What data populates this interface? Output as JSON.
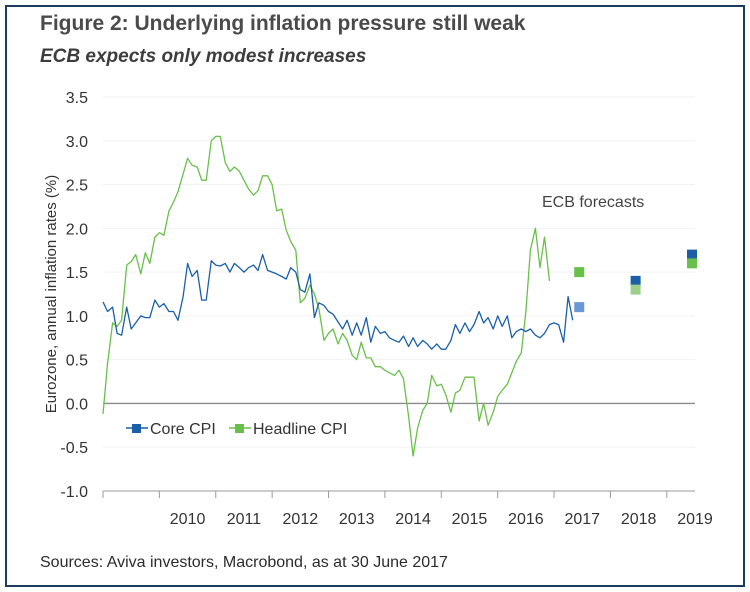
{
  "title": "Figure 2: Underlying inflation pressure still weak",
  "subtitle": "ECB expects only modest increases",
  "source": "Sources: Aviva investors, Macrobond, as at 30 June 2017",
  "colors": {
    "core": "#1a5fa8",
    "headline": "#6abf4b",
    "core_forecast_2017": "#6a98d4",
    "headline_forecast_2018": "#9ed08b",
    "zero_line": "#8a8a8a",
    "axis": "#9a9a9a"
  },
  "chart_data": {
    "type": "line",
    "ylabel": "Eurozone, annual inflation rates (%)",
    "ylim": [
      -1.0,
      3.5
    ],
    "yticks": [
      -1.0,
      -0.5,
      0.0,
      0.5,
      1.0,
      1.5,
      2.0,
      2.5,
      3.0,
      3.5
    ],
    "ytick_labels": [
      "-1.0",
      "-0.5",
      "0.0",
      "0.5",
      "1.0",
      "1.5",
      "2.0",
      "2.5",
      "3.0",
      "3.5"
    ],
    "xlim": [
      2009.0,
      2019.5
    ],
    "xtick_labels": [
      "2010",
      "2011",
      "2012",
      "2013",
      "2014",
      "2015",
      "2016",
      "2017",
      "2018",
      "2019"
    ],
    "annotation": "ECB forecasts",
    "legend": {
      "placement": "bottom-left",
      "entries": [
        "Core CPI",
        "Headline CPI"
      ]
    },
    "series": [
      {
        "name": "Core CPI",
        "points": [
          [
            2009.0,
            1.16
          ],
          [
            2009.08,
            1.05
          ],
          [
            2009.17,
            1.1
          ],
          [
            2009.25,
            0.8
          ],
          [
            2009.33,
            0.78
          ],
          [
            2009.42,
            1.1
          ],
          [
            2009.5,
            0.85
          ],
          [
            2009.58,
            0.92
          ],
          [
            2009.67,
            1.0
          ],
          [
            2009.75,
            0.98
          ],
          [
            2009.83,
            0.98
          ],
          [
            2009.92,
            1.18
          ],
          [
            2010.0,
            1.1
          ],
          [
            2010.08,
            1.14
          ],
          [
            2010.17,
            1.05
          ],
          [
            2010.25,
            1.05
          ],
          [
            2010.33,
            0.95
          ],
          [
            2010.42,
            1.22
          ],
          [
            2010.5,
            1.6
          ],
          [
            2010.58,
            1.45
          ],
          [
            2010.67,
            1.52
          ],
          [
            2010.75,
            1.18
          ],
          [
            2010.83,
            1.18
          ],
          [
            2010.92,
            1.63
          ],
          [
            2011.0,
            1.58
          ],
          [
            2011.08,
            1.57
          ],
          [
            2011.17,
            1.6
          ],
          [
            2011.25,
            1.5
          ],
          [
            2011.33,
            1.6
          ],
          [
            2011.42,
            1.55
          ],
          [
            2011.5,
            1.5
          ],
          [
            2011.58,
            1.55
          ],
          [
            2011.67,
            1.58
          ],
          [
            2011.75,
            1.52
          ],
          [
            2011.83,
            1.7
          ],
          [
            2011.92,
            1.52
          ],
          [
            2012.0,
            1.5
          ],
          [
            2012.08,
            1.48
          ],
          [
            2012.17,
            1.45
          ],
          [
            2012.25,
            1.42
          ],
          [
            2012.33,
            1.55
          ],
          [
            2012.42,
            1.5
          ],
          [
            2012.5,
            1.3
          ],
          [
            2012.58,
            1.27
          ],
          [
            2012.67,
            1.48
          ],
          [
            2012.75,
            0.98
          ],
          [
            2012.83,
            1.15
          ],
          [
            2012.92,
            1.12
          ],
          [
            2013.0,
            1.05
          ],
          [
            2013.08,
            1.02
          ],
          [
            2013.17,
            0.93
          ],
          [
            2013.25,
            0.85
          ],
          [
            2013.33,
            0.95
          ],
          [
            2013.42,
            0.78
          ],
          [
            2013.5,
            0.92
          ],
          [
            2013.58,
            0.78
          ],
          [
            2013.67,
            0.98
          ],
          [
            2013.75,
            0.7
          ],
          [
            2013.83,
            0.88
          ],
          [
            2013.92,
            0.8
          ],
          [
            2014.0,
            0.82
          ],
          [
            2014.08,
            0.75
          ],
          [
            2014.17,
            0.72
          ],
          [
            2014.25,
            0.7
          ],
          [
            2014.33,
            0.77
          ],
          [
            2014.42,
            0.65
          ],
          [
            2014.5,
            0.75
          ],
          [
            2014.58,
            0.65
          ],
          [
            2014.67,
            0.72
          ],
          [
            2014.75,
            0.68
          ],
          [
            2014.83,
            0.62
          ],
          [
            2014.92,
            0.68
          ],
          [
            2015.0,
            0.62
          ],
          [
            2015.08,
            0.62
          ],
          [
            2015.17,
            0.72
          ],
          [
            2015.25,
            0.9
          ],
          [
            2015.33,
            0.8
          ],
          [
            2015.42,
            0.92
          ],
          [
            2015.5,
            0.82
          ],
          [
            2015.58,
            0.9
          ],
          [
            2015.67,
            1.05
          ],
          [
            2015.75,
            0.92
          ],
          [
            2015.83,
            0.98
          ],
          [
            2015.92,
            0.85
          ],
          [
            2016.0,
            1.0
          ],
          [
            2016.08,
            0.88
          ],
          [
            2016.17,
            1.0
          ],
          [
            2016.25,
            0.75
          ],
          [
            2016.33,
            0.82
          ],
          [
            2016.42,
            0.85
          ],
          [
            2016.5,
            0.82
          ],
          [
            2016.58,
            0.85
          ],
          [
            2016.67,
            0.78
          ],
          [
            2016.75,
            0.75
          ],
          [
            2016.83,
            0.8
          ],
          [
            2016.92,
            0.9
          ],
          [
            2017.0,
            0.92
          ],
          [
            2017.08,
            0.9
          ],
          [
            2017.17,
            0.7
          ],
          [
            2017.25,
            1.22
          ],
          [
            2017.33,
            0.95
          ]
        ]
      },
      {
        "name": "Headline CPI",
        "points": [
          [
            2009.0,
            -0.12
          ],
          [
            2009.08,
            0.45
          ],
          [
            2009.17,
            0.92
          ],
          [
            2009.25,
            0.88
          ],
          [
            2009.33,
            0.95
          ],
          [
            2009.42,
            1.58
          ],
          [
            2009.5,
            1.62
          ],
          [
            2009.58,
            1.7
          ],
          [
            2009.67,
            1.48
          ],
          [
            2009.75,
            1.72
          ],
          [
            2009.83,
            1.6
          ],
          [
            2009.92,
            1.9
          ],
          [
            2010.0,
            1.95
          ],
          [
            2010.08,
            1.92
          ],
          [
            2010.17,
            2.2
          ],
          [
            2010.25,
            2.3
          ],
          [
            2010.33,
            2.42
          ],
          [
            2010.42,
            2.62
          ],
          [
            2010.5,
            2.8
          ],
          [
            2010.58,
            2.72
          ],
          [
            2010.67,
            2.7
          ],
          [
            2010.75,
            2.55
          ],
          [
            2010.83,
            2.55
          ],
          [
            2010.92,
            3.0
          ],
          [
            2011.0,
            3.05
          ],
          [
            2011.08,
            3.05
          ],
          [
            2011.17,
            2.75
          ],
          [
            2011.25,
            2.65
          ],
          [
            2011.33,
            2.7
          ],
          [
            2011.42,
            2.65
          ],
          [
            2011.5,
            2.55
          ],
          [
            2011.58,
            2.45
          ],
          [
            2011.67,
            2.38
          ],
          [
            2011.75,
            2.43
          ],
          [
            2011.83,
            2.6
          ],
          [
            2011.92,
            2.6
          ],
          [
            2012.0,
            2.5
          ],
          [
            2012.08,
            2.2
          ],
          [
            2012.17,
            2.22
          ],
          [
            2012.25,
            1.98
          ],
          [
            2012.33,
            1.85
          ],
          [
            2012.42,
            1.75
          ],
          [
            2012.5,
            1.15
          ],
          [
            2012.58,
            1.2
          ],
          [
            2012.67,
            1.35
          ],
          [
            2012.75,
            1.25
          ],
          [
            2012.83,
            1.08
          ],
          [
            2012.92,
            0.72
          ],
          [
            2013.0,
            0.8
          ],
          [
            2013.08,
            0.85
          ],
          [
            2013.17,
            0.68
          ],
          [
            2013.25,
            0.8
          ],
          [
            2013.33,
            0.72
          ],
          [
            2013.42,
            0.55
          ],
          [
            2013.5,
            0.5
          ],
          [
            2013.58,
            0.7
          ],
          [
            2013.67,
            0.52
          ],
          [
            2013.75,
            0.52
          ],
          [
            2013.83,
            0.42
          ],
          [
            2013.92,
            0.42
          ],
          [
            2014.0,
            0.38
          ],
          [
            2014.08,
            0.35
          ],
          [
            2014.17,
            0.32
          ],
          [
            2014.25,
            0.38
          ],
          [
            2014.33,
            0.28
          ],
          [
            2014.42,
            -0.15
          ],
          [
            2014.5,
            -0.6
          ],
          [
            2014.58,
            -0.28
          ],
          [
            2014.67,
            -0.08
          ],
          [
            2014.75,
            0.0
          ],
          [
            2014.83,
            0.32
          ],
          [
            2014.92,
            0.2
          ],
          [
            2015.0,
            0.22
          ],
          [
            2015.08,
            0.1
          ],
          [
            2015.17,
            -0.1
          ],
          [
            2015.25,
            0.12
          ],
          [
            2015.33,
            0.15
          ],
          [
            2015.42,
            0.3
          ],
          [
            2015.5,
            0.3
          ],
          [
            2015.58,
            0.3
          ],
          [
            2015.67,
            -0.2
          ],
          [
            2015.75,
            0.0
          ],
          [
            2015.83,
            -0.25
          ],
          [
            2015.92,
            -0.1
          ],
          [
            2016.0,
            0.08
          ],
          [
            2016.08,
            0.15
          ],
          [
            2016.17,
            0.22
          ],
          [
            2016.25,
            0.35
          ],
          [
            2016.33,
            0.48
          ],
          [
            2016.42,
            0.58
          ],
          [
            2016.5,
            1.05
          ],
          [
            2016.58,
            1.75
          ],
          [
            2016.67,
            2.0
          ],
          [
            2016.75,
            1.55
          ],
          [
            2016.83,
            1.9
          ],
          [
            2016.92,
            1.4
          ]
        ]
      }
    ],
    "forecasts": [
      {
        "series": "Headline CPI",
        "x": 2017,
        "value": 1.5
      },
      {
        "series": "Core CPI",
        "x": 2017,
        "value": 1.1
      },
      {
        "series": "Core CPI",
        "x": 2018,
        "value": 1.4
      },
      {
        "series": "Headline CPI",
        "x": 2018,
        "value": 1.3
      },
      {
        "series": "Core CPI",
        "x": 2019,
        "value": 1.7
      },
      {
        "series": "Headline CPI",
        "x": 2019,
        "value": 1.6
      }
    ]
  }
}
